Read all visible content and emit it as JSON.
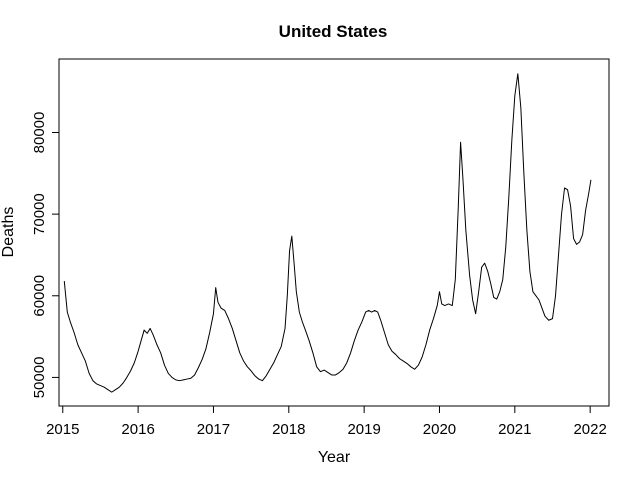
{
  "chart_data": {
    "type": "line",
    "title": "United States",
    "xlabel": "Year",
    "ylabel": "Deaths",
    "xlim": [
      2014.95,
      2022.25
    ],
    "ylim": [
      46500,
      89000
    ],
    "x_ticks": [
      2015,
      2016,
      2017,
      2018,
      2019,
      2020,
      2021,
      2022
    ],
    "x_tick_labels": [
      "2015",
      "2016",
      "2017",
      "2018",
      "2019",
      "2020",
      "2021",
      "2022"
    ],
    "y_ticks": [
      50000,
      60000,
      70000,
      80000
    ],
    "y_tick_labels": [
      "50000",
      "60000",
      "70000",
      "80000"
    ],
    "grid": false,
    "legend": "none",
    "series": [
      {
        "color": "#000000",
        "points": [
          [
            2015.02,
            61800
          ],
          [
            2015.06,
            58000
          ],
          [
            2015.1,
            56800
          ],
          [
            2015.15,
            55500
          ],
          [
            2015.2,
            54000
          ],
          [
            2015.25,
            53000
          ],
          [
            2015.3,
            52000
          ],
          [
            2015.35,
            50500
          ],
          [
            2015.4,
            49600
          ],
          [
            2015.45,
            49200
          ],
          [
            2015.5,
            49000
          ],
          [
            2015.55,
            48800
          ],
          [
            2015.6,
            48500
          ],
          [
            2015.65,
            48200
          ],
          [
            2015.7,
            48500
          ],
          [
            2015.75,
            48800
          ],
          [
            2015.8,
            49300
          ],
          [
            2015.85,
            50000
          ],
          [
            2015.9,
            50800
          ],
          [
            2015.95,
            51800
          ],
          [
            2016.0,
            53200
          ],
          [
            2016.04,
            54500
          ],
          [
            2016.08,
            55800
          ],
          [
            2016.12,
            55400
          ],
          [
            2016.16,
            56000
          ],
          [
            2016.2,
            55200
          ],
          [
            2016.25,
            54000
          ],
          [
            2016.3,
            53000
          ],
          [
            2016.35,
            51500
          ],
          [
            2016.4,
            50500
          ],
          [
            2016.45,
            50000
          ],
          [
            2016.5,
            49700
          ],
          [
            2016.55,
            49600
          ],
          [
            2016.6,
            49700
          ],
          [
            2016.65,
            49800
          ],
          [
            2016.7,
            49900
          ],
          [
            2016.75,
            50300
          ],
          [
            2016.8,
            51200
          ],
          [
            2016.85,
            52200
          ],
          [
            2016.9,
            53500
          ],
          [
            2016.95,
            55500
          ],
          [
            2017.0,
            57800
          ],
          [
            2017.03,
            61000
          ],
          [
            2017.06,
            59200
          ],
          [
            2017.1,
            58500
          ],
          [
            2017.15,
            58200
          ],
          [
            2017.2,
            57200
          ],
          [
            2017.25,
            56000
          ],
          [
            2017.3,
            54500
          ],
          [
            2017.35,
            53000
          ],
          [
            2017.4,
            52000
          ],
          [
            2017.45,
            51300
          ],
          [
            2017.5,
            50800
          ],
          [
            2017.55,
            50200
          ],
          [
            2017.6,
            49800
          ],
          [
            2017.65,
            49600
          ],
          [
            2017.7,
            50200
          ],
          [
            2017.75,
            51000
          ],
          [
            2017.8,
            51800
          ],
          [
            2017.85,
            52800
          ],
          [
            2017.9,
            53800
          ],
          [
            2017.95,
            56000
          ],
          [
            2017.98,
            60000
          ],
          [
            2018.01,
            65500
          ],
          [
            2018.04,
            67300
          ],
          [
            2018.07,
            64000
          ],
          [
            2018.1,
            60500
          ],
          [
            2018.14,
            58000
          ],
          [
            2018.18,
            56800
          ],
          [
            2018.22,
            55800
          ],
          [
            2018.27,
            54500
          ],
          [
            2018.32,
            53000
          ],
          [
            2018.37,
            51300
          ],
          [
            2018.42,
            50700
          ],
          [
            2018.47,
            50900
          ],
          [
            2018.52,
            50600
          ],
          [
            2018.57,
            50300
          ],
          [
            2018.62,
            50300
          ],
          [
            2018.67,
            50600
          ],
          [
            2018.72,
            51000
          ],
          [
            2018.77,
            51800
          ],
          [
            2018.82,
            53000
          ],
          [
            2018.87,
            54500
          ],
          [
            2018.92,
            55800
          ],
          [
            2018.97,
            56800
          ],
          [
            2019.02,
            58000
          ],
          [
            2019.06,
            58200
          ],
          [
            2019.1,
            58000
          ],
          [
            2019.14,
            58200
          ],
          [
            2019.18,
            58000
          ],
          [
            2019.22,
            57000
          ],
          [
            2019.27,
            55500
          ],
          [
            2019.32,
            54000
          ],
          [
            2019.37,
            53200
          ],
          [
            2019.42,
            52800
          ],
          [
            2019.47,
            52300
          ],
          [
            2019.52,
            52000
          ],
          [
            2019.57,
            51700
          ],
          [
            2019.62,
            51300
          ],
          [
            2019.67,
            51000
          ],
          [
            2019.72,
            51500
          ],
          [
            2019.77,
            52500
          ],
          [
            2019.82,
            54000
          ],
          [
            2019.87,
            55800
          ],
          [
            2019.92,
            57200
          ],
          [
            2019.97,
            58800
          ],
          [
            2020.0,
            60500
          ],
          [
            2020.03,
            59000
          ],
          [
            2020.07,
            58800
          ],
          [
            2020.12,
            59000
          ],
          [
            2020.17,
            58800
          ],
          [
            2020.21,
            62000
          ],
          [
            2020.25,
            71000
          ],
          [
            2020.28,
            78800
          ],
          [
            2020.31,
            74500
          ],
          [
            2020.35,
            68000
          ],
          [
            2020.4,
            62500
          ],
          [
            2020.44,
            59500
          ],
          [
            2020.48,
            57800
          ],
          [
            2020.52,
            60500
          ],
          [
            2020.56,
            63500
          ],
          [
            2020.6,
            64000
          ],
          [
            2020.64,
            63000
          ],
          [
            2020.68,
            61500
          ],
          [
            2020.72,
            59800
          ],
          [
            2020.76,
            59600
          ],
          [
            2020.8,
            60500
          ],
          [
            2020.84,
            62000
          ],
          [
            2020.88,
            66000
          ],
          [
            2020.92,
            72000
          ],
          [
            2020.96,
            79000
          ],
          [
            2021.0,
            84500
          ],
          [
            2021.04,
            87200
          ],
          [
            2021.08,
            83000
          ],
          [
            2021.12,
            75000
          ],
          [
            2021.16,
            68000
          ],
          [
            2021.2,
            63000
          ],
          [
            2021.24,
            60500
          ],
          [
            2021.28,
            60000
          ],
          [
            2021.32,
            59500
          ],
          [
            2021.36,
            58500
          ],
          [
            2021.4,
            57500
          ],
          [
            2021.45,
            57000
          ],
          [
            2021.5,
            57200
          ],
          [
            2021.54,
            60000
          ],
          [
            2021.58,
            65000
          ],
          [
            2021.62,
            70000
          ],
          [
            2021.66,
            73200
          ],
          [
            2021.7,
            73000
          ],
          [
            2021.74,
            71000
          ],
          [
            2021.78,
            67000
          ],
          [
            2021.82,
            66300
          ],
          [
            2021.86,
            66600
          ],
          [
            2021.9,
            67500
          ],
          [
            2021.94,
            70500
          ],
          [
            2021.98,
            72500
          ],
          [
            2022.01,
            74200
          ]
        ]
      }
    ]
  }
}
